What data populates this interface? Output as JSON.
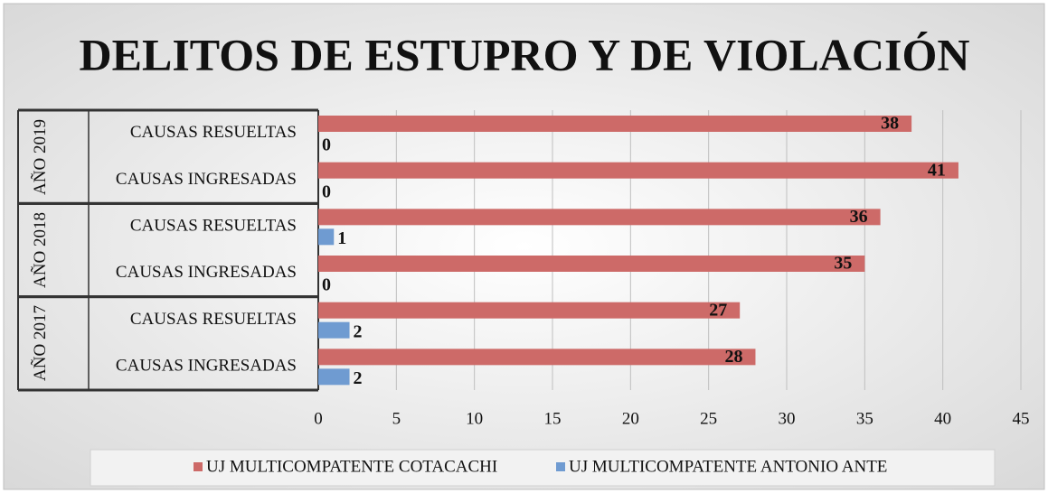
{
  "chart_data": {
    "type": "bar",
    "orientation": "horizontal",
    "title": "DELITOS DE ESTUPRO Y DE VIOLACIÓN",
    "groups": [
      {
        "label": "AÑO 2019"
      },
      {
        "label": "AÑO 2018"
      },
      {
        "label": "AÑO 2017"
      }
    ],
    "categories": [
      "CAUSAS RESUELTAS",
      "CAUSAS INGRESADAS",
      "CAUSAS RESUELTAS",
      "CAUSAS INGRESADAS",
      "CAUSAS RESUELTAS",
      "CAUSAS INGRESADAS"
    ],
    "series": [
      {
        "name": "UJ MULTICOMPATENTE COTACACHI",
        "color": "#cd6a68",
        "values": [
          38,
          41,
          36,
          35,
          27,
          28
        ]
      },
      {
        "name": "UJ MULTICOMPATENTE ANTONIO ANTE",
        "color": "#6f9bd1",
        "values": [
          0,
          0,
          1,
          0,
          2,
          2
        ]
      }
    ],
    "xlim": [
      0,
      45
    ],
    "xticks": [
      0,
      5,
      10,
      15,
      20,
      25,
      30,
      35,
      40,
      45
    ],
    "grid": true,
    "legend": "bottom"
  }
}
